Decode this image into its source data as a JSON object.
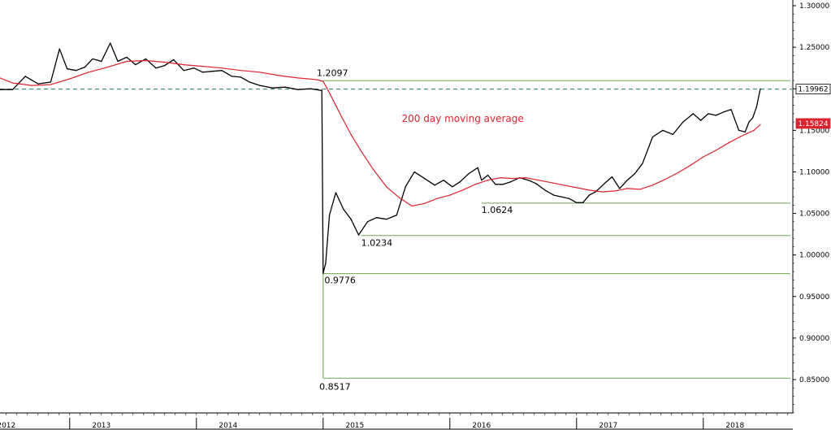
{
  "chart_data": {
    "type": "line",
    "title": "",
    "xlabel": "",
    "ylabel": "",
    "ylim": [
      0.8,
      1.3
    ],
    "y_ticks": [
      "1.30000",
      "1.25000",
      "1.20000",
      "1.15000",
      "1.10000",
      "1.05000",
      "1.00000",
      "0.95000",
      "0.90000",
      "0.85000"
    ],
    "y_tick_values": [
      1.3,
      1.25,
      1.2,
      1.15,
      1.1,
      1.05,
      1.0,
      0.95,
      0.9,
      0.85
    ],
    "x_range": [
      2011.95,
      2018.2
    ],
    "x_labels": [
      "2012",
      "2013",
      "2014",
      "2015",
      "2016",
      "2017",
      "2018"
    ],
    "x_label_values": [
      2012.0,
      2012.75,
      2013.75,
      2014.75,
      2015.75,
      2016.75,
      2017.75
    ],
    "x_year_bounds": [
      2012.5,
      2013.5,
      2014.5,
      2015.5,
      2016.5,
      2017.5
    ],
    "series": [
      {
        "name": "",
        "color": "#000000",
        "x": [
          2011.95,
          2012.05,
          2012.15,
          2012.25,
          2012.35,
          2012.42,
          2012.48,
          2012.55,
          2012.62,
          2012.68,
          2012.75,
          2012.82,
          2012.88,
          2012.95,
          2013.02,
          2013.1,
          2013.18,
          2013.25,
          2013.32,
          2013.4,
          2013.48,
          2013.55,
          2013.62,
          2013.7,
          2013.78,
          2013.85,
          2013.92,
          2014.0,
          2014.1,
          2014.2,
          2014.3,
          2014.4,
          2014.49,
          2014.5,
          2014.52,
          2014.55,
          2014.6,
          2014.66,
          2014.72,
          2014.78,
          2014.85,
          2014.92,
          2015.0,
          2015.08,
          2015.15,
          2015.22,
          2015.3,
          2015.38,
          2015.45,
          2015.52,
          2015.58,
          2015.65,
          2015.72,
          2015.75,
          2015.8,
          2015.86,
          2015.92,
          2015.98,
          2016.05,
          2016.12,
          2016.18,
          2016.25,
          2016.32,
          2016.38,
          2016.44,
          2016.5,
          2016.55,
          2016.6,
          2016.65,
          2016.72,
          2016.78,
          2016.84,
          2016.9,
          2016.96,
          2017.02,
          2017.1,
          2017.18,
          2017.26,
          2017.34,
          2017.42,
          2017.48,
          2017.54,
          2017.6,
          2017.66,
          2017.72,
          2017.78,
          2017.83,
          2017.86,
          2017.89,
          2017.92,
          2017.95
        ],
        "y": [
          1.199,
          1.199,
          1.215,
          1.206,
          1.208,
          1.248,
          1.224,
          1.222,
          1.226,
          1.236,
          1.233,
          1.255,
          1.233,
          1.238,
          1.229,
          1.236,
          1.225,
          1.228,
          1.235,
          1.222,
          1.225,
          1.22,
          1.221,
          1.222,
          1.215,
          1.214,
          1.208,
          1.204,
          1.201,
          1.202,
          1.199,
          1.2,
          1.198,
          0.978,
          0.99,
          1.048,
          1.075,
          1.055,
          1.043,
          1.024,
          1.04,
          1.045,
          1.043,
          1.048,
          1.082,
          1.1,
          1.092,
          1.084,
          1.09,
          1.082,
          1.088,
          1.098,
          1.105,
          1.09,
          1.096,
          1.085,
          1.085,
          1.088,
          1.093,
          1.09,
          1.086,
          1.078,
          1.072,
          1.07,
          1.068,
          1.063,
          1.063,
          1.072,
          1.076,
          1.086,
          1.094,
          1.08,
          1.09,
          1.098,
          1.11,
          1.142,
          1.15,
          1.145,
          1.16,
          1.17,
          1.162,
          1.17,
          1.168,
          1.172,
          1.175,
          1.15,
          1.148,
          1.16,
          1.165,
          1.178,
          1.2
        ]
      },
      {
        "name": "200 day moving average",
        "color": "#d9232e",
        "x": [
          2011.95,
          2012.05,
          2012.2,
          2012.35,
          2012.5,
          2012.65,
          2012.8,
          2012.95,
          2013.1,
          2013.25,
          2013.4,
          2013.55,
          2013.7,
          2013.85,
          2014.0,
          2014.15,
          2014.3,
          2014.45,
          2014.5,
          2014.55,
          2014.6,
          2014.65,
          2014.72,
          2014.8,
          2014.9,
          2015.0,
          2015.1,
          2015.2,
          2015.3,
          2015.4,
          2015.5,
          2015.6,
          2015.7,
          2015.8,
          2015.9,
          2016.0,
          2016.1,
          2016.2,
          2016.3,
          2016.4,
          2016.5,
          2016.6,
          2016.7,
          2016.8,
          2016.9,
          2017.0,
          2017.1,
          2017.2,
          2017.3,
          2017.4,
          2017.5,
          2017.6,
          2017.7,
          2017.8,
          2017.9,
          2017.95
        ],
        "y": [
          1.213,
          1.207,
          1.204,
          1.205,
          1.212,
          1.22,
          1.226,
          1.233,
          1.234,
          1.232,
          1.229,
          1.227,
          1.225,
          1.222,
          1.22,
          1.216,
          1.213,
          1.211,
          1.209,
          1.195,
          1.18,
          1.165,
          1.145,
          1.125,
          1.102,
          1.082,
          1.069,
          1.059,
          1.062,
          1.068,
          1.072,
          1.078,
          1.085,
          1.09,
          1.093,
          1.092,
          1.093,
          1.09,
          1.087,
          1.084,
          1.081,
          1.078,
          1.076,
          1.077,
          1.08,
          1.079,
          1.084,
          1.091,
          1.099,
          1.108,
          1.118,
          1.126,
          1.135,
          1.143,
          1.15,
          1.157
        ]
      }
    ],
    "hlines": [
      {
        "value": 1.2097,
        "label": "1.2097",
        "color": "#6aa84f",
        "from_x": 2014.5
      },
      {
        "value": 1.0624,
        "label": "1.0624",
        "color": "#6aa84f",
        "from_x": 2015.75
      },
      {
        "value": 1.0234,
        "label": "1.0234",
        "color": "#6aa84f",
        "from_x": 2014.8
      },
      {
        "value": 0.9776,
        "label": "0.9776",
        "color": "#6aa84f",
        "from_x": 2014.5
      },
      {
        "value": 0.8517,
        "label": "0.8517",
        "color": "#6aa84f",
        "from_x": 2014.5
      }
    ],
    "current_price": {
      "value": 1.19962,
      "label": "1.19962",
      "line_color": "#1a7f5a",
      "badge_bg": "#ffffff",
      "badge_text": "#000000"
    },
    "ma_value": {
      "value": 1.15824,
      "label": "1.15824",
      "badge_bg": "#d9232e",
      "badge_text": "#ffffff"
    },
    "ma_annotation": {
      "text": "200 day moving average",
      "color": "#d9232e"
    },
    "legend": "none",
    "grid": false
  }
}
